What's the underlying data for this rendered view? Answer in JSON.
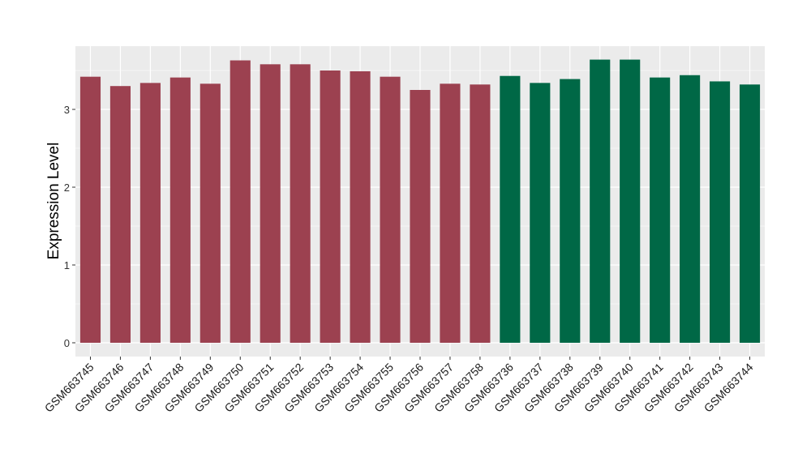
{
  "chart_data": {
    "type": "bar",
    "title": "",
    "xlabel": "",
    "ylabel": "Expression Level",
    "ylim": [
      0,
      3.75
    ],
    "yticks": [
      0,
      1,
      2,
      3
    ],
    "grid": true,
    "legend": "none",
    "categories": [
      "GSM663745",
      "GSM663746",
      "GSM663747",
      "GSM663748",
      "GSM663749",
      "GSM663750",
      "GSM663751",
      "GSM663752",
      "GSM663753",
      "GSM663754",
      "GSM663755",
      "GSM663756",
      "GSM663757",
      "GSM663758",
      "GSM663736",
      "GSM663737",
      "GSM663738",
      "GSM663739",
      "GSM663740",
      "GSM663741",
      "GSM663742",
      "GSM663743",
      "GSM663744"
    ],
    "values": [
      3.42,
      3.3,
      3.34,
      3.41,
      3.33,
      3.63,
      3.58,
      3.58,
      3.5,
      3.49,
      3.42,
      3.25,
      3.33,
      3.32,
      3.43,
      3.34,
      3.39,
      3.64,
      3.64,
      3.41,
      3.44,
      3.36,
      3.32
    ],
    "group_sizes": [
      14,
      9
    ],
    "colors": {
      "group1": "#9c4150",
      "group2": "#006846",
      "panel": "#ebebeb",
      "grid": "#ffffff"
    }
  }
}
